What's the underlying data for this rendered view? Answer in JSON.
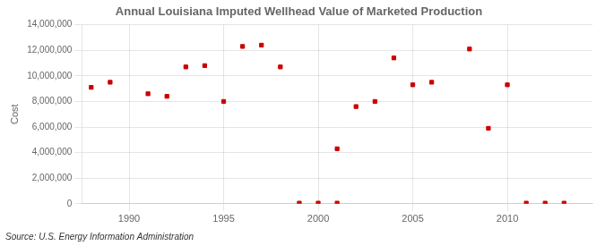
{
  "chart_data": {
    "type": "scatter",
    "title": "Annual Louisiana Imputed Wellhead Value of Marketed Production",
    "ylabel": "Cost",
    "source": "Source: U.S. Energy Information Administration",
    "x": [
      1988,
      1989,
      1991,
      1992,
      1993,
      1994,
      1995,
      1996,
      1997,
      1998,
      1999,
      2000,
      2001,
      2001,
      2002,
      2003,
      2004,
      2005,
      2006,
      2008,
      2009,
      2010,
      2011,
      2012,
      2013
    ],
    "values": [
      9100000,
      9500000,
      8600000,
      8400000,
      10700000,
      10800000,
      8000000,
      12300000,
      12400000,
      10700000,
      50000,
      50000,
      4300000,
      50000,
      7600000,
      8000000,
      11400000,
      9300000,
      9500000,
      12100000,
      5900000,
      9300000,
      50000,
      50000,
      50000
    ],
    "color": "#cc0000",
    "marker": "square",
    "xlim": [
      1987.5,
      2014.5
    ],
    "ylim": [
      0,
      14000000
    ],
    "xticks": [
      1990,
      1995,
      2000,
      2005,
      2010
    ],
    "yticks": [
      0,
      {
        "value": 2000000,
        "label": "2,000,000"
      },
      {
        "value": 4000000,
        "label": "4,000,000"
      },
      {
        "value": 6000000,
        "label": "6,000,000"
      },
      {
        "value": 8000000,
        "label": "8,000,000"
      },
      {
        "value": 10000000,
        "label": "10,000,000"
      },
      {
        "value": 12000000,
        "label": "12,000,000"
      },
      {
        "value": 14000000,
        "label": "14,000,000"
      }
    ],
    "grid": true
  }
}
